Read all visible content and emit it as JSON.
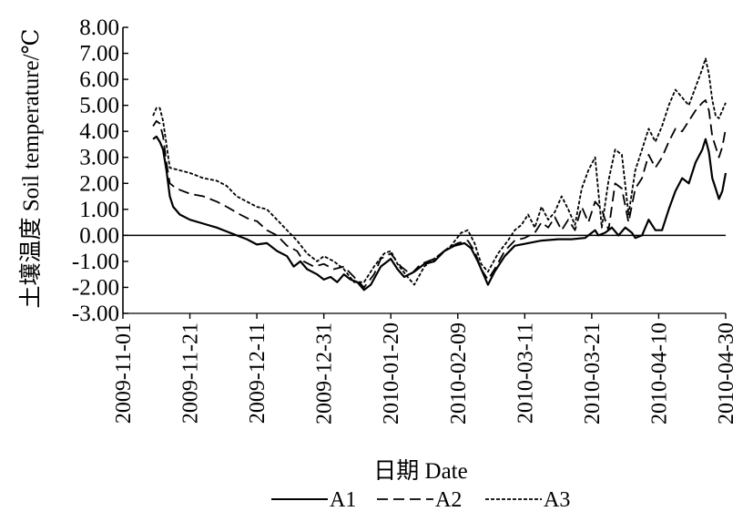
{
  "chart_data": {
    "type": "line",
    "ylabel": "土壤温度 Soil temperature/℃",
    "xlabel": "日期 Date",
    "ylim": [
      -3.0,
      8.0
    ],
    "yticks": [
      "8.00",
      "7.00",
      "6.00",
      "5.00",
      "4.00",
      "3.00",
      "2.00",
      "1.00",
      "0.00",
      "-1.00",
      "-2.00",
      "-3.00"
    ],
    "xticks": [
      "2009-11-01",
      "2009-11-21",
      "2009-12-11",
      "2009-12-31",
      "2010-01-20",
      "2010-02-09",
      "2010-03-11",
      "2010-03-21",
      "2010-04-10",
      "2010-04-30"
    ],
    "legend_position": "bottom",
    "series": [
      {
        "name": "A1",
        "style": "solid",
        "values": [
          [
            "2009-11-10",
            3.7
          ],
          [
            "2009-11-11",
            3.8
          ],
          [
            "2009-11-12",
            3.6
          ],
          [
            "2009-11-13",
            3.3
          ],
          [
            "2009-11-14",
            2.5
          ],
          [
            "2009-11-15",
            1.5
          ],
          [
            "2009-11-16",
            1.1
          ],
          [
            "2009-11-18",
            0.8
          ],
          [
            "2009-11-21",
            0.6
          ],
          [
            "2009-11-25",
            0.45
          ],
          [
            "2009-11-29",
            0.3
          ],
          [
            "2009-12-02",
            0.15
          ],
          [
            "2009-12-05",
            0.0
          ],
          [
            "2009-12-08",
            -0.15
          ],
          [
            "2009-12-11",
            -0.35
          ],
          [
            "2009-12-14",
            -0.3
          ],
          [
            "2009-12-17",
            -0.6
          ],
          [
            "2009-12-20",
            -0.8
          ],
          [
            "2009-12-22",
            -1.2
          ],
          [
            "2009-12-24",
            -1.0
          ],
          [
            "2009-12-26",
            -1.3
          ],
          [
            "2009-12-29",
            -1.5
          ],
          [
            "2009-12-31",
            -1.7
          ],
          [
            "2010-01-02",
            -1.6
          ],
          [
            "2010-01-04",
            -1.8
          ],
          [
            "2010-01-06",
            -1.5
          ],
          [
            "2010-01-08",
            -1.7
          ],
          [
            "2010-01-10",
            -1.8
          ],
          [
            "2010-01-12",
            -2.1
          ],
          [
            "2010-01-14",
            -1.9
          ],
          [
            "2010-01-17",
            -1.2
          ],
          [
            "2010-01-20",
            -0.9
          ],
          [
            "2010-01-22",
            -1.3
          ],
          [
            "2010-01-24",
            -1.6
          ],
          [
            "2010-01-27",
            -1.4
          ],
          [
            "2010-01-30",
            -1.1
          ],
          [
            "2010-02-02",
            -1.0
          ],
          [
            "2010-02-05",
            -0.6
          ],
          [
            "2010-02-08",
            -0.4
          ],
          [
            "2010-02-11",
            -0.3
          ],
          [
            "2010-02-13",
            -0.5
          ],
          [
            "2010-02-15",
            -1.0
          ],
          [
            "2010-02-17",
            -1.6
          ],
          [
            "2010-02-18",
            -1.9
          ],
          [
            "2010-02-20",
            -1.4
          ],
          [
            "2010-02-23",
            -0.8
          ],
          [
            "2010-02-26",
            -0.4
          ],
          [
            "2010-03-02",
            -0.3
          ],
          [
            "2010-03-06",
            -0.2
          ],
          [
            "2010-03-11",
            -0.15
          ],
          [
            "2010-03-15",
            -0.15
          ],
          [
            "2010-03-19",
            -0.1
          ],
          [
            "2010-03-22",
            0.2
          ],
          [
            "2010-03-23",
            0.0
          ],
          [
            "2010-03-25",
            0.1
          ],
          [
            "2010-03-27",
            0.3
          ],
          [
            "2010-03-29",
            0.0
          ],
          [
            "2010-03-31",
            0.3
          ],
          [
            "2010-04-02",
            0.1
          ],
          [
            "2010-04-03",
            -0.1
          ],
          [
            "2010-04-05",
            0.0
          ],
          [
            "2010-04-07",
            0.6
          ],
          [
            "2010-04-09",
            0.2
          ],
          [
            "2010-04-11",
            0.2
          ],
          [
            "2010-04-13",
            1.0
          ],
          [
            "2010-04-15",
            1.7
          ],
          [
            "2010-04-17",
            2.2
          ],
          [
            "2010-04-19",
            2.0
          ],
          [
            "2010-04-21",
            2.8
          ],
          [
            "2010-04-23",
            3.3
          ],
          [
            "2010-04-24",
            3.7
          ],
          [
            "2010-04-25",
            3.2
          ],
          [
            "2010-04-26",
            2.2
          ],
          [
            "2010-04-27",
            1.8
          ],
          [
            "2010-04-28",
            1.4
          ],
          [
            "2010-04-29",
            1.7
          ],
          [
            "2010-04-30",
            2.4
          ]
        ]
      },
      {
        "name": "A2",
        "style": "dashed",
        "values": [
          [
            "2009-11-10",
            4.2
          ],
          [
            "2009-11-11",
            4.4
          ],
          [
            "2009-11-12",
            4.3
          ],
          [
            "2009-11-13",
            3.8
          ],
          [
            "2009-11-14",
            2.8
          ],
          [
            "2009-11-15",
            2.0
          ],
          [
            "2009-11-17",
            1.8
          ],
          [
            "2009-11-21",
            1.6
          ],
          [
            "2009-11-25",
            1.5
          ],
          [
            "2009-11-29",
            1.3
          ],
          [
            "2009-12-02",
            1.1
          ],
          [
            "2009-12-06",
            0.8
          ],
          [
            "2009-12-09",
            0.6
          ],
          [
            "2009-12-11",
            0.55
          ],
          [
            "2009-12-14",
            0.2
          ],
          [
            "2009-12-17",
            0.0
          ],
          [
            "2009-12-20",
            -0.4
          ],
          [
            "2009-12-23",
            -0.6
          ],
          [
            "2009-12-25",
            -1.0
          ],
          [
            "2009-12-28",
            -1.2
          ],
          [
            "2009-12-31",
            -1.1
          ],
          [
            "2010-01-03",
            -1.3
          ],
          [
            "2010-01-06",
            -1.2
          ],
          [
            "2010-01-09",
            -1.6
          ],
          [
            "2010-01-12",
            -2.0
          ],
          [
            "2010-01-15",
            -1.5
          ],
          [
            "2010-01-17",
            -0.9
          ],
          [
            "2010-01-20",
            -0.7
          ],
          [
            "2010-01-23",
            -1.2
          ],
          [
            "2010-01-26",
            -1.5
          ],
          [
            "2010-01-29",
            -1.1
          ],
          [
            "2010-02-02",
            -0.9
          ],
          [
            "2010-02-06",
            -0.5
          ],
          [
            "2010-02-09",
            -0.3
          ],
          [
            "2010-02-12",
            -0.2
          ],
          [
            "2010-02-14",
            -0.6
          ],
          [
            "2010-02-16",
            -1.3
          ],
          [
            "2010-02-18",
            -1.7
          ],
          [
            "2010-02-20",
            -1.3
          ],
          [
            "2010-02-23",
            -0.6
          ],
          [
            "2010-02-26",
            -0.2
          ],
          [
            "2010-03-01",
            -0.1
          ],
          [
            "2010-03-04",
            0.1
          ],
          [
            "2010-03-06",
            0.5
          ],
          [
            "2010-03-08",
            0.3
          ],
          [
            "2010-03-10",
            0.7
          ],
          [
            "2010-03-12",
            0.2
          ],
          [
            "2010-03-14",
            0.6
          ],
          [
            "2010-03-16",
            0.2
          ],
          [
            "2010-03-18",
            1.1
          ],
          [
            "2010-03-20",
            0.5
          ],
          [
            "2010-03-22",
            1.3
          ],
          [
            "2010-03-24",
            1.0
          ],
          [
            "2010-03-26",
            0.2
          ],
          [
            "2010-03-28",
            2.0
          ],
          [
            "2010-03-30",
            1.8
          ],
          [
            "2010-04-01",
            0.5
          ],
          [
            "2010-04-03",
            1.8
          ],
          [
            "2010-04-05",
            2.2
          ],
          [
            "2010-04-07",
            3.1
          ],
          [
            "2010-04-09",
            2.6
          ],
          [
            "2010-04-11",
            3.0
          ],
          [
            "2010-04-13",
            3.6
          ],
          [
            "2010-04-15",
            4.1
          ],
          [
            "2010-04-17",
            4.0
          ],
          [
            "2010-04-19",
            4.4
          ],
          [
            "2010-04-21",
            4.8
          ],
          [
            "2010-04-23",
            5.1
          ],
          [
            "2010-04-24",
            5.2
          ],
          [
            "2010-04-25",
            4.8
          ],
          [
            "2010-04-26",
            3.8
          ],
          [
            "2010-04-27",
            3.4
          ],
          [
            "2010-04-28",
            3.0
          ],
          [
            "2010-04-29",
            3.4
          ],
          [
            "2010-04-30",
            4.1
          ]
        ]
      },
      {
        "name": "A3",
        "style": "dotted",
        "values": [
          [
            "2009-11-10",
            4.6
          ],
          [
            "2009-11-11",
            4.9
          ],
          [
            "2009-11-12",
            4.9
          ],
          [
            "2009-11-13",
            4.4
          ],
          [
            "2009-11-14",
            3.5
          ],
          [
            "2009-11-15",
            2.6
          ],
          [
            "2009-11-18",
            2.5
          ],
          [
            "2009-11-21",
            2.4
          ],
          [
            "2009-11-25",
            2.2
          ],
          [
            "2009-11-29",
            2.1
          ],
          [
            "2009-12-02",
            1.9
          ],
          [
            "2009-12-05",
            1.5
          ],
          [
            "2009-12-08",
            1.3
          ],
          [
            "2009-12-11",
            1.1
          ],
          [
            "2009-12-14",
            1.0
          ],
          [
            "2009-12-17",
            0.6
          ],
          [
            "2009-12-20",
            0.2
          ],
          [
            "2009-12-23",
            -0.2
          ],
          [
            "2009-12-26",
            -0.7
          ],
          [
            "2009-12-29",
            -1.0
          ],
          [
            "2009-12-31",
            -0.8
          ],
          [
            "2010-01-03",
            -1.0
          ],
          [
            "2010-01-06",
            -1.3
          ],
          [
            "2010-01-09",
            -1.8
          ],
          [
            "2010-01-12",
            -1.8
          ],
          [
            "2010-01-15",
            -1.2
          ],
          [
            "2010-01-18",
            -0.7
          ],
          [
            "2010-01-20",
            -0.6
          ],
          [
            "2010-01-22",
            -1.1
          ],
          [
            "2010-01-25",
            -1.6
          ],
          [
            "2010-01-27",
            -1.9
          ],
          [
            "2010-01-30",
            -1.2
          ],
          [
            "2010-02-03",
            -0.8
          ],
          [
            "2010-02-07",
            -0.4
          ],
          [
            "2010-02-10",
            0.1
          ],
          [
            "2010-02-12",
            0.2
          ],
          [
            "2010-02-14",
            -0.3
          ],
          [
            "2010-02-16",
            -1.1
          ],
          [
            "2010-02-18",
            -1.4
          ],
          [
            "2010-02-21",
            -0.7
          ],
          [
            "2010-02-24",
            -0.2
          ],
          [
            "2010-02-26",
            0.2
          ],
          [
            "2010-02-28",
            0.4
          ],
          [
            "2010-03-02",
            0.8
          ],
          [
            "2010-03-04",
            0.3
          ],
          [
            "2010-03-06",
            1.1
          ],
          [
            "2010-03-08",
            0.6
          ],
          [
            "2010-03-10",
            0.9
          ],
          [
            "2010-03-12",
            1.5
          ],
          [
            "2010-03-14",
            1.0
          ],
          [
            "2010-03-16",
            0.4
          ],
          [
            "2010-03-18",
            1.8
          ],
          [
            "2010-03-20",
            2.5
          ],
          [
            "2010-03-22",
            3.0
          ],
          [
            "2010-03-24",
            0.3
          ],
          [
            "2010-03-26",
            2.1
          ],
          [
            "2010-03-28",
            3.3
          ],
          [
            "2010-03-30",
            3.1
          ],
          [
            "2010-04-01",
            0.8
          ],
          [
            "2010-04-03",
            2.5
          ],
          [
            "2010-04-05",
            3.3
          ],
          [
            "2010-04-07",
            4.1
          ],
          [
            "2010-04-09",
            3.6
          ],
          [
            "2010-04-11",
            4.2
          ],
          [
            "2010-04-13",
            5.0
          ],
          [
            "2010-04-15",
            5.6
          ],
          [
            "2010-04-17",
            5.3
          ],
          [
            "2010-04-19",
            5.0
          ],
          [
            "2010-04-21",
            5.7
          ],
          [
            "2010-04-23",
            6.4
          ],
          [
            "2010-04-24",
            6.8
          ],
          [
            "2010-04-25",
            6.2
          ],
          [
            "2010-04-26",
            5.2
          ],
          [
            "2010-04-27",
            4.6
          ],
          [
            "2010-04-28",
            4.5
          ],
          [
            "2010-04-29",
            4.8
          ],
          [
            "2010-04-30",
            5.1
          ]
        ]
      }
    ]
  }
}
